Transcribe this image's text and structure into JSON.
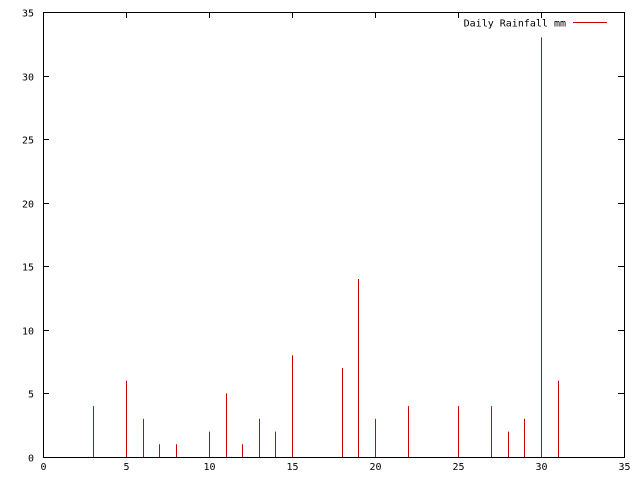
{
  "chart_data": {
    "type": "bar",
    "style": "impulses",
    "title": "",
    "xlabel": "",
    "ylabel": "",
    "xlim": [
      0,
      35
    ],
    "ylim": [
      0,
      35
    ],
    "xticks": [
      0,
      5,
      10,
      15,
      20,
      25,
      30,
      35
    ],
    "yticks": [
      0,
      5,
      10,
      15,
      20,
      25,
      30,
      35
    ],
    "grid": false,
    "legend_position": "top-right",
    "series": [
      {
        "name": "Daily Rainfall mm",
        "color": "#cc0000",
        "x": [
          3,
          5,
          6,
          7,
          8,
          10,
          11,
          12,
          13,
          14,
          15,
          18,
          19,
          20,
          22,
          25,
          27,
          28,
          29,
          30,
          31
        ],
        "y": [
          4,
          6,
          3,
          1,
          1,
          2,
          5,
          1,
          3,
          2,
          8,
          7,
          14,
          3,
          4,
          4,
          4,
          2,
          3,
          33,
          6
        ]
      }
    ]
  }
}
